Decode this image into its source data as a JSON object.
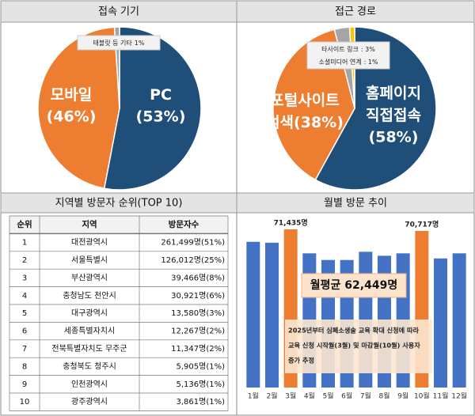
{
  "chart_data": [
    {
      "type": "pie",
      "title": "접속 기기",
      "categories": [
        "PC",
        "모바일",
        "태블릿 등 기타"
      ],
      "values": [
        53,
        46,
        1
      ],
      "value_labels": [
        "(53%)",
        "(46%)",
        "1%"
      ],
      "colors": [
        "#1f4e79",
        "#ed7d31",
        "#a5a5a5"
      ]
    },
    {
      "type": "pie",
      "title": "접근 경로",
      "categories": [
        "홈페이지 직접접속",
        "포털사이트 검색",
        "타사이트 링크",
        "소셜미디어 연계"
      ],
      "values": [
        58,
        38,
        3,
        1
      ],
      "value_labels": [
        "(58%)",
        "(38%)",
        ": 3%",
        ": 1%"
      ],
      "colors": [
        "#1f4e79",
        "#ed7d31",
        "#a5a5a5",
        "#ffc000"
      ]
    },
    {
      "type": "bar",
      "title": "월별 방문 추이",
      "categories": [
        "1월",
        "2월",
        "3월",
        "4월",
        "5월",
        "6월",
        "7월",
        "8월",
        "9월",
        "10월",
        "11월",
        "12월"
      ],
      "values": [
        65800,
        65400,
        71435,
        60600,
        57600,
        57600,
        61300,
        59500,
        60600,
        70717,
        58300,
        60600
      ],
      "value_labels": [
        null,
        null,
        "71,435명",
        null,
        null,
        null,
        null,
        null,
        null,
        "70,717명",
        null,
        null
      ],
      "colors": [
        "#4472c4",
        "#4472c4",
        "#ed7d31",
        "#4472c4",
        "#4472c4",
        "#4472c4",
        "#4472c4",
        "#4472c4",
        "#4472c4",
        "#ed7d31",
        "#4472c4",
        "#4472c4"
      ],
      "ylim": [
        0,
        75000
      ],
      "annotations": [
        "월평균 62,449명",
        "2025년부터 심폐소생술 교육 확대 신청에 따라",
        "교육 신청 시작월(3월) 및 마감월(10월) 사용자",
        "증가 추정"
      ]
    }
  ],
  "table": {
    "title": "지역별 방문자 순위(TOP 10)",
    "columns": [
      "순위",
      "지역",
      "방문자수"
    ],
    "rows": [
      [
        1,
        "대전광역시",
        "261,499명(51%)"
      ],
      [
        2,
        "서울특별시",
        "126,012명(25%)"
      ],
      [
        3,
        "부산광역시",
        "39,466명(8%)"
      ],
      [
        4,
        "충청남도 천안시",
        "30,921명(6%)"
      ],
      [
        5,
        "대구광역시",
        "13,580명(3%)"
      ],
      [
        6,
        "세종특별자치시",
        "12,267명(2%)"
      ],
      [
        7,
        "전북특별자치도 무주군",
        "11,347명(2%)"
      ],
      [
        8,
        "충청북도 청주시",
        "5,905명(1%)"
      ],
      [
        9,
        "인천광역시",
        "5,136명(1%)"
      ],
      [
        10,
        "광주광역시",
        "3,861명(1%)"
      ]
    ]
  }
}
